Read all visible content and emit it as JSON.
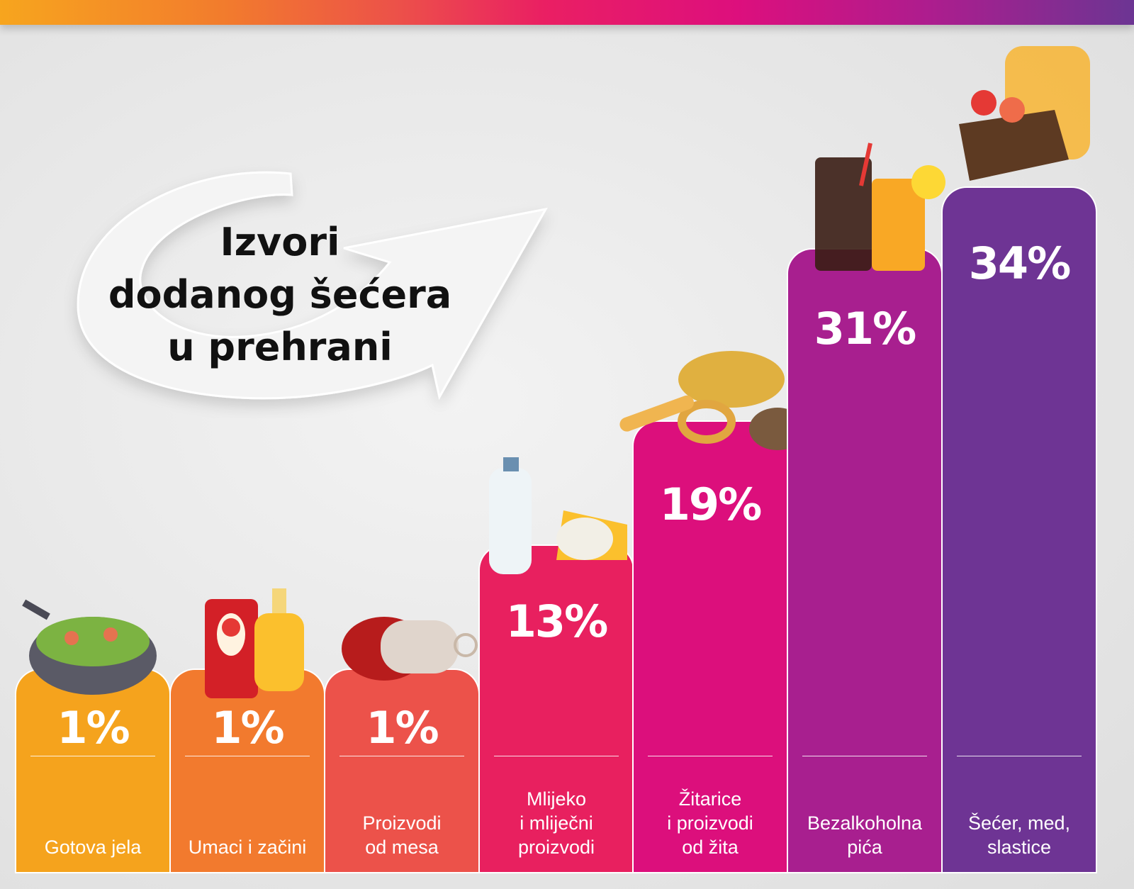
{
  "title": [
    "Izvori",
    "dodanog šećera",
    "u prehrani"
  ],
  "chart_data": {
    "type": "bar",
    "title": "Izvori dodanog šećera u prehrani",
    "categories": [
      "Gotova jela",
      "Umaci i začini",
      "Proizvodi\nod mesa",
      "Mlijeko\ni mliječni\nproizvodi",
      "Žitarice\ni proizvodi\nod žita",
      "Bezalkoholna\npića",
      "Šećer, med,\nslastice"
    ],
    "values": [
      1,
      1,
      1,
      13,
      19,
      31,
      34
    ],
    "value_labels": [
      "1%",
      "1%",
      "1%",
      "13%",
      "19%",
      "31%",
      "34%"
    ],
    "colors": [
      "#F5A31D",
      "#F27A2E",
      "#EC524A",
      "#E8205F",
      "#DC0F7C",
      "#A81F8F",
      "#6E3494"
    ],
    "icons": [
      "wok-vegetables-icon",
      "ketchup-mustard-icon",
      "salami-icon",
      "milk-cheese-yogurt-icon",
      "bread-wheat-icon",
      "cola-juice-icon",
      "cake-honey-icon"
    ],
    "xlabel": "",
    "ylabel": "",
    "ylim": [
      0,
      34
    ],
    "grid": false
  },
  "top_bar_gradient": [
    "#F7A51E",
    "#EA1F63",
    "#6C3593"
  ]
}
